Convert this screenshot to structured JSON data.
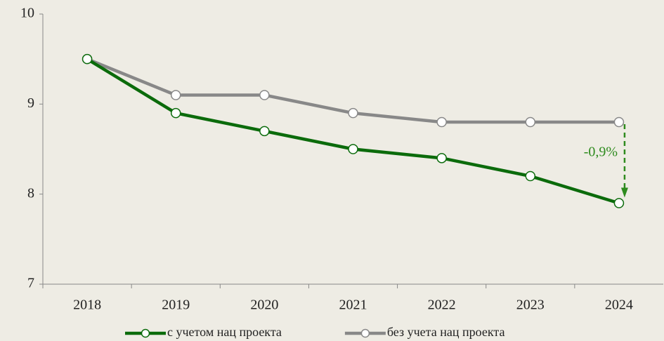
{
  "chart_data": {
    "type": "line",
    "categories": [
      "2018",
      "2019",
      "2020",
      "2021",
      "2022",
      "2023",
      "2024"
    ],
    "series": [
      {
        "name": "с учетом нац проекта",
        "color": "#0b6b0b",
        "values": [
          9.5,
          8.9,
          8.7,
          8.5,
          8.4,
          8.2,
          7.9
        ]
      },
      {
        "name": "без учета нац проекта",
        "color": "#888888",
        "values": [
          9.5,
          9.1,
          9.1,
          8.9,
          8.8,
          8.8,
          8.8
        ]
      }
    ],
    "ylim": [
      7,
      10
    ],
    "yticks": [
      7,
      8,
      9,
      10
    ],
    "annotation": "-0,9%",
    "annotation_color": "#2e8b1e"
  }
}
